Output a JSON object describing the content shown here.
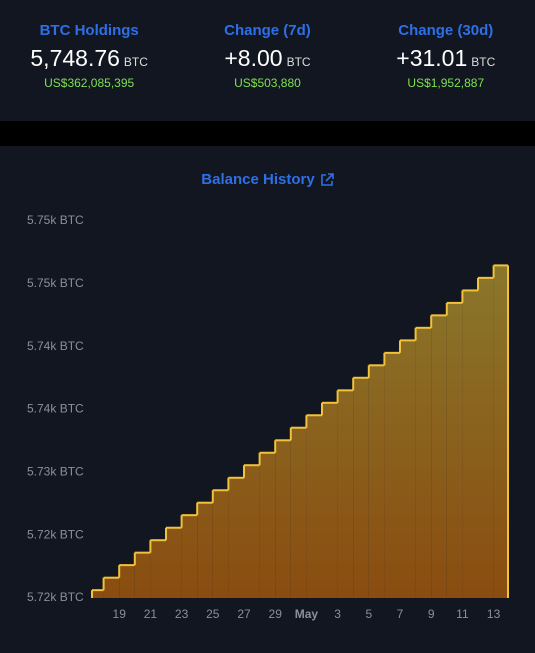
{
  "stats": [
    {
      "label": "BTC Holdings",
      "value": "5,748.76",
      "unit": "BTC",
      "usd": "US$362,085,395"
    },
    {
      "label": "Change (7d)",
      "value": "+8.00",
      "unit": "BTC",
      "usd": "US$503,880"
    },
    {
      "label": "Change (30d)",
      "value": "+31.01",
      "unit": "BTC",
      "usd": "US$1,952,887"
    }
  ],
  "chart_data": {
    "type": "step-area",
    "title": "Balance History",
    "categories": [
      null,
      null,
      "19",
      null,
      "21",
      null,
      "23",
      null,
      "25",
      null,
      "27",
      null,
      "29",
      null,
      "May",
      null,
      "3",
      null,
      "5",
      null,
      "7",
      null,
      "9",
      null,
      "11",
      null,
      "13"
    ],
    "series": [
      {
        "name": "BTC",
        "color": "#f2c23a",
        "values": [
          5717.75,
          5718.94,
          5720.14,
          5721.33,
          5722.52,
          5723.71,
          5724.91,
          5726.1,
          5727.29,
          5728.48,
          5729.68,
          5730.87,
          5732.06,
          5733.26,
          5734.45,
          5735.64,
          5736.83,
          5738.03,
          5739.22,
          5740.41,
          5741.6,
          5742.8,
          5743.99,
          5745.18,
          5746.37,
          5747.57,
          5748.76
        ]
      }
    ],
    "ylim": [
      5717,
      5753
    ],
    "yticks": [
      {
        "value": 5717,
        "label": "5.72k BTC"
      },
      {
        "value": 5723,
        "label": "5.72k BTC"
      },
      {
        "value": 5729,
        "label": "5.73k BTC"
      },
      {
        "value": 5735,
        "label": "5.74k BTC"
      },
      {
        "value": 5741,
        "label": "5.74k BTC"
      },
      {
        "value": 5747,
        "label": "5.75k BTC"
      },
      {
        "value": 5753,
        "label": "5.75k BTC"
      }
    ],
    "grid": false
  }
}
